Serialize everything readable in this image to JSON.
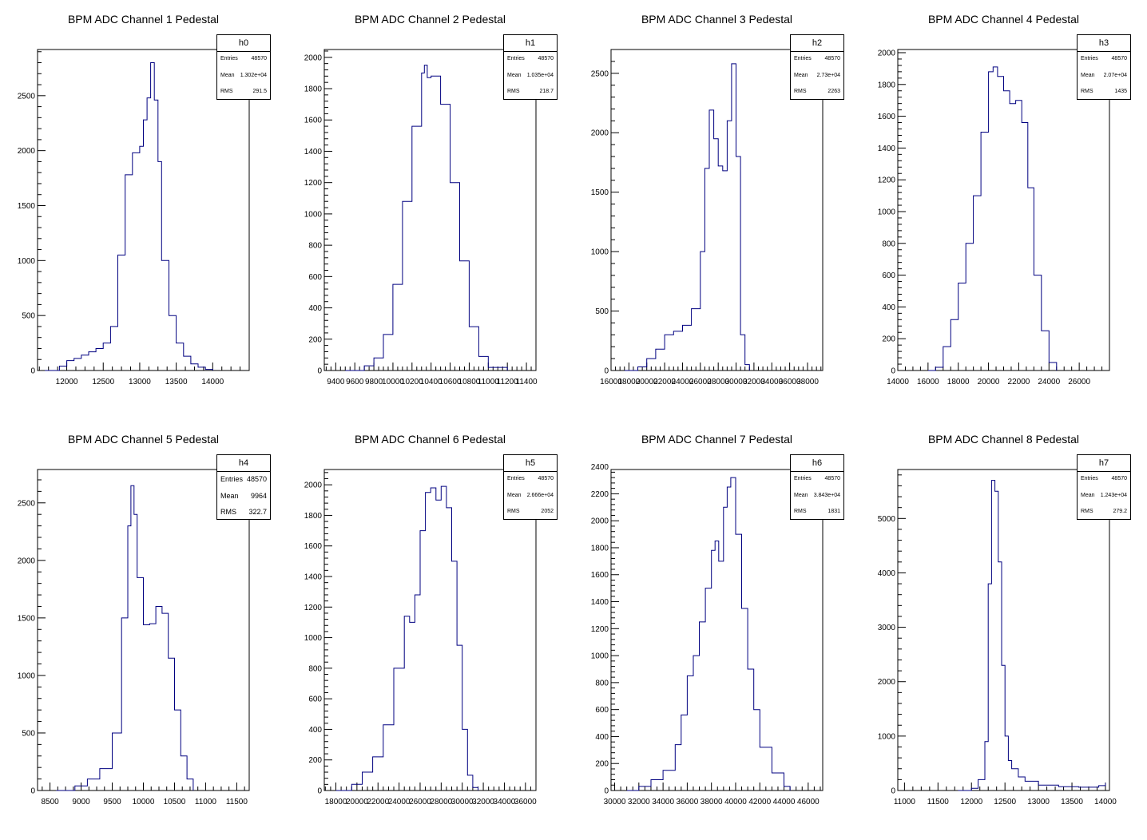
{
  "histograms": [
    {
      "title": "BPM ADC Channel 1 Pedestal",
      "name": "h0",
      "stats": {
        "entries_label": "Entries",
        "entries": "48570",
        "mean_label": "Mean",
        "mean": "1.302e+04",
        "rms_label": "RMS",
        "rms": "291.5"
      },
      "xlim": [
        11600,
        14500
      ],
      "ylim": [
        0,
        2920
      ],
      "xticks": [
        12000,
        12500,
        13000,
        13500,
        14000
      ],
      "yticks": [
        0,
        500,
        1000,
        1500,
        2000,
        2500
      ],
      "chart_data": {
        "type": "histogram",
        "x": [
          11700,
          11900,
          12000,
          12100,
          12200,
          12300,
          12400,
          12500,
          12600,
          12700,
          12800,
          12900,
          13000,
          13050,
          13100,
          13150,
          13200,
          13250,
          13300,
          13400,
          13500,
          13600,
          13700,
          13800,
          13900,
          14000
        ],
        "values": [
          0,
          40,
          90,
          110,
          140,
          170,
          200,
          250,
          400,
          1050,
          1780,
          1980,
          2040,
          2280,
          2480,
          2800,
          2460,
          1900,
          1000,
          500,
          250,
          130,
          60,
          30,
          10,
          0
        ]
      }
    },
    {
      "title": "BPM ADC Channel 2 Pedestal",
      "name": "h1",
      "stats": {
        "entries_label": "Entries",
        "entries": "48570",
        "mean_label": "Mean",
        "mean": "1.035e+04",
        "rms_label": "RMS",
        "rms": "218.7"
      },
      "xlim": [
        9280,
        11500
      ],
      "ylim": [
        0,
        2050
      ],
      "xticks": [
        9400,
        9600,
        9800,
        10000,
        10200,
        10400,
        10600,
        10800,
        11000,
        11200,
        11400
      ],
      "yticks": [
        0,
        200,
        400,
        600,
        800,
        1000,
        1200,
        1400,
        1600,
        1800,
        2000
      ],
      "chart_data": {
        "type": "histogram",
        "x": [
          9500,
          9700,
          9800,
          9900,
          10000,
          10100,
          10200,
          10300,
          10330,
          10360,
          10400,
          10500,
          10600,
          10700,
          10800,
          10900,
          11000,
          11200
        ],
        "values": [
          0,
          30,
          80,
          230,
          550,
          1080,
          1560,
          1900,
          1950,
          1870,
          1880,
          1700,
          1200,
          700,
          280,
          90,
          20,
          0
        ]
      }
    },
    {
      "title": "BPM ADC Channel 3 Pedestal",
      "name": "h2",
      "stats": {
        "entries_label": "Entries",
        "entries": "48570",
        "mean_label": "Mean",
        "mean": "2.73e+04",
        "rms_label": "RMS",
        "rms": "2263"
      },
      "xlim": [
        16000,
        39700
      ],
      "ylim": [
        0,
        2700
      ],
      "xticks": [
        16000,
        18000,
        20000,
        22000,
        24000,
        26000,
        28000,
        30000,
        32000,
        34000,
        36000,
        38000
      ],
      "yticks": [
        0,
        500,
        1000,
        1500,
        2000,
        2500
      ],
      "chart_data": {
        "type": "histogram",
        "x": [
          17500,
          19000,
          20000,
          21000,
          22000,
          23000,
          24000,
          25000,
          26000,
          26500,
          27000,
          27500,
          28000,
          28500,
          29000,
          29500,
          30000,
          30500,
          31000,
          31500
        ],
        "values": [
          0,
          30,
          100,
          180,
          300,
          330,
          380,
          520,
          1000,
          1700,
          2190,
          1950,
          1720,
          1680,
          2100,
          2580,
          1800,
          300,
          50,
          0
        ]
      }
    },
    {
      "title": "BPM ADC Channel 4 Pedestal",
      "name": "h3",
      "stats": {
        "entries_label": "Entries",
        "entries": "48570",
        "mean_label": "Mean",
        "mean": "2.07e+04",
        "rms_label": "RMS",
        "rms": "1435"
      },
      "xlim": [
        14000,
        28000
      ],
      "ylim": [
        0,
        2020
      ],
      "xticks": [
        14000,
        16000,
        18000,
        20000,
        22000,
        24000,
        26000
      ],
      "yticks": [
        0,
        200,
        400,
        600,
        800,
        1000,
        1200,
        1400,
        1600,
        1800,
        2000
      ],
      "chart_data": {
        "type": "histogram",
        "x": [
          16000,
          16500,
          17000,
          17500,
          18000,
          18500,
          19000,
          19500,
          20000,
          20300,
          20600,
          21000,
          21400,
          21800,
          22200,
          22600,
          23000,
          23500,
          24000,
          24500
        ],
        "values": [
          0,
          20,
          150,
          320,
          550,
          800,
          1100,
          1500,
          1880,
          1910,
          1850,
          1760,
          1680,
          1700,
          1560,
          1150,
          600,
          250,
          50,
          0
        ]
      }
    },
    {
      "title": "BPM ADC Channel 5 Pedestal",
      "name": "h4",
      "stats": {
        "entries_label": "Entries",
        "entries": "48570",
        "mean_label": "Mean",
        "mean": "9964",
        "rms_label": "RMS",
        "rms": "322.7"
      },
      "xlim": [
        8300,
        11700
      ],
      "ylim": [
        0,
        2790
      ],
      "xticks": [
        8500,
        9000,
        9500,
        10000,
        10500,
        11000,
        11500
      ],
      "yticks": [
        0,
        500,
        1000,
        1500,
        2000,
        2500
      ],
      "chart_data": {
        "type": "histogram",
        "x": [
          8600,
          8900,
          9100,
          9300,
          9500,
          9650,
          9750,
          9800,
          9850,
          9900,
          10000,
          10100,
          10200,
          10300,
          10400,
          10500,
          10600,
          10700,
          10800
        ],
        "values": [
          0,
          40,
          100,
          190,
          500,
          1500,
          2300,
          2650,
          2400,
          1850,
          1440,
          1450,
          1600,
          1540,
          1150,
          700,
          300,
          100,
          0
        ]
      }
    },
    {
      "title": "BPM ADC Channel 6 Pedestal",
      "name": "h5",
      "stats": {
        "entries_label": "Entries",
        "entries": "48570",
        "mean_label": "Mean",
        "mean": "2.666e+04",
        "rms_label": "RMS",
        "rms": "2052"
      },
      "xlim": [
        16900,
        37000
      ],
      "ylim": [
        0,
        2100
      ],
      "xticks": [
        18000,
        20000,
        22000,
        24000,
        26000,
        28000,
        30000,
        32000,
        34000,
        36000
      ],
      "yticks": [
        0,
        200,
        400,
        600,
        800,
        1000,
        1200,
        1400,
        1600,
        1800,
        2000
      ],
      "chart_data": {
        "type": "histogram",
        "x": [
          18000,
          19500,
          20500,
          21500,
          22500,
          23500,
          24500,
          25000,
          25500,
          26000,
          26500,
          27000,
          27500,
          28000,
          28500,
          29000,
          29500,
          30000,
          30500,
          31000,
          31500
        ],
        "values": [
          0,
          40,
          120,
          220,
          430,
          800,
          1140,
          1100,
          1280,
          1700,
          1950,
          1980,
          1900,
          1990,
          1850,
          1500,
          950,
          400,
          100,
          20,
          0
        ]
      }
    },
    {
      "title": "BPM ADC Channel 7 Pedestal",
      "name": "h6",
      "stats": {
        "entries_label": "Entries",
        "entries": "48570",
        "mean_label": "Mean",
        "mean": "3.843e+04",
        "rms_label": "RMS",
        "rms": "1831"
      },
      "xlim": [
        29700,
        47200
      ],
      "ylim": [
        0,
        2380
      ],
      "xticks": [
        30000,
        32000,
        34000,
        36000,
        38000,
        40000,
        42000,
        44000,
        46000
      ],
      "yticks": [
        0,
        200,
        400,
        600,
        800,
        1000,
        1200,
        1400,
        1600,
        1800,
        2000,
        2200,
        2400
      ],
      "chart_data": {
        "type": "histogram",
        "x": [
          31000,
          32000,
          33000,
          34000,
          35000,
          35500,
          36000,
          36500,
          37000,
          37500,
          38000,
          38300,
          38600,
          39000,
          39300,
          39600,
          40000,
          40500,
          41000,
          41500,
          42000,
          43000,
          44000,
          44500
        ],
        "values": [
          0,
          30,
          80,
          150,
          340,
          560,
          850,
          1000,
          1250,
          1500,
          1780,
          1850,
          1700,
          2100,
          2250,
          2320,
          1900,
          1350,
          900,
          600,
          320,
          130,
          30,
          0
        ]
      }
    },
    {
      "title": "BPM ADC Channel 8 Pedestal",
      "name": "h7",
      "stats": {
        "entries_label": "Entries",
        "entries": "48570",
        "mean_label": "Mean",
        "mean": "1.243e+04",
        "rms_label": "RMS",
        "rms": "279.2"
      },
      "xlim": [
        10900,
        14060
      ],
      "ylim": [
        0,
        5900
      ],
      "xticks": [
        11000,
        11500,
        12000,
        12500,
        13000,
        13500,
        14000
      ],
      "yticks": [
        0,
        1000,
        2000,
        3000,
        4000,
        5000
      ],
      "chart_data": {
        "type": "histogram",
        "x": [
          11800,
          12000,
          12100,
          12200,
          12250,
          12300,
          12350,
          12400,
          12450,
          12500,
          12550,
          12600,
          12700,
          12800,
          13000,
          13300,
          13600,
          13900,
          14000
        ],
        "values": [
          0,
          40,
          200,
          900,
          3800,
          5700,
          5500,
          4200,
          2300,
          1000,
          550,
          400,
          250,
          170,
          100,
          70,
          60,
          90,
          140
        ]
      }
    }
  ]
}
